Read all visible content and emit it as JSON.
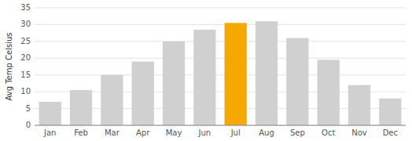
{
  "chart_data": {
    "type": "bar",
    "ylabel": "Avg Temp Celsius",
    "categories": [
      "Jan",
      "Feb",
      "Mar",
      "Apr",
      "May",
      "Jun",
      "Jul",
      "Aug",
      "Sep",
      "Oct",
      "Nov",
      "Dec"
    ],
    "values": [
      7,
      10.5,
      15,
      19,
      25,
      28.5,
      30.5,
      31,
      26,
      19.5,
      12,
      8
    ],
    "colors": [
      "#d0d0d0",
      "#d0d0d0",
      "#d0d0d0",
      "#d0d0d0",
      "#d0d0d0",
      "#d0d0d0",
      "#f5a800",
      "#d0d0d0",
      "#d0d0d0",
      "#d0d0d0",
      "#d0d0d0",
      "#d0d0d0"
    ],
    "ylim": [
      0,
      35
    ],
    "yticks": [
      0,
      5,
      10,
      15,
      20,
      25,
      30,
      35
    ],
    "grid": true
  }
}
